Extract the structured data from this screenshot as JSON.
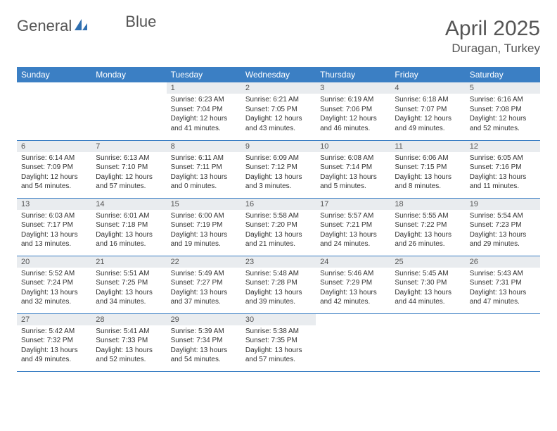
{
  "brand": {
    "textA": "General",
    "textB": "Blue"
  },
  "title": "April 2025",
  "location": "Duragan, Turkey",
  "colors": {
    "header_bg": "#3b7fc4",
    "header_text": "#ffffff",
    "daynum_bg": "#e9ecef",
    "border": "#3b7fc4",
    "text": "#333333",
    "title_text": "#555555"
  },
  "weekdays": [
    "Sunday",
    "Monday",
    "Tuesday",
    "Wednesday",
    "Thursday",
    "Friday",
    "Saturday"
  ],
  "weeks": [
    [
      {
        "n": "",
        "sunrise": "",
        "sunset": "",
        "daylight": ""
      },
      {
        "n": "",
        "sunrise": "",
        "sunset": "",
        "daylight": ""
      },
      {
        "n": "1",
        "sunrise": "Sunrise: 6:23 AM",
        "sunset": "Sunset: 7:04 PM",
        "daylight": "Daylight: 12 hours and 41 minutes."
      },
      {
        "n": "2",
        "sunrise": "Sunrise: 6:21 AM",
        "sunset": "Sunset: 7:05 PM",
        "daylight": "Daylight: 12 hours and 43 minutes."
      },
      {
        "n": "3",
        "sunrise": "Sunrise: 6:19 AM",
        "sunset": "Sunset: 7:06 PM",
        "daylight": "Daylight: 12 hours and 46 minutes."
      },
      {
        "n": "4",
        "sunrise": "Sunrise: 6:18 AM",
        "sunset": "Sunset: 7:07 PM",
        "daylight": "Daylight: 12 hours and 49 minutes."
      },
      {
        "n": "5",
        "sunrise": "Sunrise: 6:16 AM",
        "sunset": "Sunset: 7:08 PM",
        "daylight": "Daylight: 12 hours and 52 minutes."
      }
    ],
    [
      {
        "n": "6",
        "sunrise": "Sunrise: 6:14 AM",
        "sunset": "Sunset: 7:09 PM",
        "daylight": "Daylight: 12 hours and 54 minutes."
      },
      {
        "n": "7",
        "sunrise": "Sunrise: 6:13 AM",
        "sunset": "Sunset: 7:10 PM",
        "daylight": "Daylight: 12 hours and 57 minutes."
      },
      {
        "n": "8",
        "sunrise": "Sunrise: 6:11 AM",
        "sunset": "Sunset: 7:11 PM",
        "daylight": "Daylight: 13 hours and 0 minutes."
      },
      {
        "n": "9",
        "sunrise": "Sunrise: 6:09 AM",
        "sunset": "Sunset: 7:12 PM",
        "daylight": "Daylight: 13 hours and 3 minutes."
      },
      {
        "n": "10",
        "sunrise": "Sunrise: 6:08 AM",
        "sunset": "Sunset: 7:14 PM",
        "daylight": "Daylight: 13 hours and 5 minutes."
      },
      {
        "n": "11",
        "sunrise": "Sunrise: 6:06 AM",
        "sunset": "Sunset: 7:15 PM",
        "daylight": "Daylight: 13 hours and 8 minutes."
      },
      {
        "n": "12",
        "sunrise": "Sunrise: 6:05 AM",
        "sunset": "Sunset: 7:16 PM",
        "daylight": "Daylight: 13 hours and 11 minutes."
      }
    ],
    [
      {
        "n": "13",
        "sunrise": "Sunrise: 6:03 AM",
        "sunset": "Sunset: 7:17 PM",
        "daylight": "Daylight: 13 hours and 13 minutes."
      },
      {
        "n": "14",
        "sunrise": "Sunrise: 6:01 AM",
        "sunset": "Sunset: 7:18 PM",
        "daylight": "Daylight: 13 hours and 16 minutes."
      },
      {
        "n": "15",
        "sunrise": "Sunrise: 6:00 AM",
        "sunset": "Sunset: 7:19 PM",
        "daylight": "Daylight: 13 hours and 19 minutes."
      },
      {
        "n": "16",
        "sunrise": "Sunrise: 5:58 AM",
        "sunset": "Sunset: 7:20 PM",
        "daylight": "Daylight: 13 hours and 21 minutes."
      },
      {
        "n": "17",
        "sunrise": "Sunrise: 5:57 AM",
        "sunset": "Sunset: 7:21 PM",
        "daylight": "Daylight: 13 hours and 24 minutes."
      },
      {
        "n": "18",
        "sunrise": "Sunrise: 5:55 AM",
        "sunset": "Sunset: 7:22 PM",
        "daylight": "Daylight: 13 hours and 26 minutes."
      },
      {
        "n": "19",
        "sunrise": "Sunrise: 5:54 AM",
        "sunset": "Sunset: 7:23 PM",
        "daylight": "Daylight: 13 hours and 29 minutes."
      }
    ],
    [
      {
        "n": "20",
        "sunrise": "Sunrise: 5:52 AM",
        "sunset": "Sunset: 7:24 PM",
        "daylight": "Daylight: 13 hours and 32 minutes."
      },
      {
        "n": "21",
        "sunrise": "Sunrise: 5:51 AM",
        "sunset": "Sunset: 7:25 PM",
        "daylight": "Daylight: 13 hours and 34 minutes."
      },
      {
        "n": "22",
        "sunrise": "Sunrise: 5:49 AM",
        "sunset": "Sunset: 7:27 PM",
        "daylight": "Daylight: 13 hours and 37 minutes."
      },
      {
        "n": "23",
        "sunrise": "Sunrise: 5:48 AM",
        "sunset": "Sunset: 7:28 PM",
        "daylight": "Daylight: 13 hours and 39 minutes."
      },
      {
        "n": "24",
        "sunrise": "Sunrise: 5:46 AM",
        "sunset": "Sunset: 7:29 PM",
        "daylight": "Daylight: 13 hours and 42 minutes."
      },
      {
        "n": "25",
        "sunrise": "Sunrise: 5:45 AM",
        "sunset": "Sunset: 7:30 PM",
        "daylight": "Daylight: 13 hours and 44 minutes."
      },
      {
        "n": "26",
        "sunrise": "Sunrise: 5:43 AM",
        "sunset": "Sunset: 7:31 PM",
        "daylight": "Daylight: 13 hours and 47 minutes."
      }
    ],
    [
      {
        "n": "27",
        "sunrise": "Sunrise: 5:42 AM",
        "sunset": "Sunset: 7:32 PM",
        "daylight": "Daylight: 13 hours and 49 minutes."
      },
      {
        "n": "28",
        "sunrise": "Sunrise: 5:41 AM",
        "sunset": "Sunset: 7:33 PM",
        "daylight": "Daylight: 13 hours and 52 minutes."
      },
      {
        "n": "29",
        "sunrise": "Sunrise: 5:39 AM",
        "sunset": "Sunset: 7:34 PM",
        "daylight": "Daylight: 13 hours and 54 minutes."
      },
      {
        "n": "30",
        "sunrise": "Sunrise: 5:38 AM",
        "sunset": "Sunset: 7:35 PM",
        "daylight": "Daylight: 13 hours and 57 minutes."
      },
      {
        "n": "",
        "sunrise": "",
        "sunset": "",
        "daylight": ""
      },
      {
        "n": "",
        "sunrise": "",
        "sunset": "",
        "daylight": ""
      },
      {
        "n": "",
        "sunrise": "",
        "sunset": "",
        "daylight": ""
      }
    ]
  ]
}
